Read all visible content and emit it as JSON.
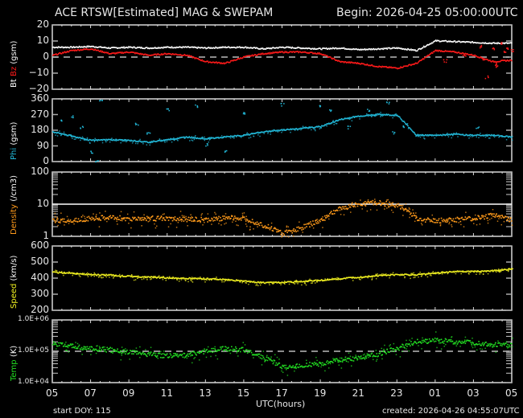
{
  "header": {
    "title": "ACE RTSW[Estimated] MAG & SWEPAM",
    "begin": "Begin: 2026-04-25 05:00:00UTC"
  },
  "footer": {
    "start_doy": "start DOY: 115",
    "created": "created: 2026-04-26 04:55:07UTC",
    "xaxis_label": "UTC(hours)"
  },
  "colors": {
    "background": "#000000",
    "axis": "#d8d8d8",
    "bt": "#ffffff",
    "bz": "#ff1a1a",
    "phi": "#22b8d8",
    "density": "#ff9a1a",
    "speed": "#f0f020",
    "temp": "#22dd22"
  },
  "chart_data": [
    {
      "type": "line",
      "panel": "mag-bt-bz",
      "ylabel_parts": [
        {
          "text": "Bt",
          "color": "#ffffff"
        },
        {
          "text": " Bz",
          "color": "#ff1a1a"
        },
        {
          "text": " (gsm)",
          "color": "#ffffff"
        }
      ],
      "ylim": [
        -20,
        20
      ],
      "yticks": [
        "20",
        "10",
        "0",
        "−10",
        "−20"
      ],
      "yticks_values": [
        20,
        10,
        0,
        -10,
        -20
      ],
      "reference_line": {
        "y": 0,
        "style": "dashed"
      },
      "x_hours": [
        0,
        1,
        2,
        3,
        4,
        5,
        6,
        7,
        8,
        9,
        10,
        11,
        12,
        13,
        14,
        15,
        16,
        17,
        18,
        19,
        20,
        21,
        22,
        23,
        24
      ],
      "series": [
        {
          "name": "Bt",
          "color": "#ffffff",
          "values": [
            6,
            6,
            6.5,
            5.5,
            6,
            5.5,
            6,
            6,
            5.5,
            6,
            6,
            5,
            6,
            5.5,
            5,
            5.5,
            4.5,
            5,
            5.5,
            4,
            10,
            9.5,
            9,
            8.5,
            8.5
          ]
        },
        {
          "name": "Bz",
          "color": "#ff1a1a",
          "values": [
            1,
            4,
            5,
            2,
            3,
            1,
            2,
            1,
            -3,
            -4,
            0,
            2,
            3,
            3,
            2,
            -3,
            -4,
            -6,
            -7,
            -4,
            4,
            3,
            1,
            -3,
            -2
          ]
        },
        {
          "name": "Bz_tail",
          "color": "#ff1a1a",
          "values": []
        }
      ],
      "extra_bz_points_hours": [
        [
          20.5,
          -2
        ],
        [
          21.5,
          2
        ],
        [
          22.5,
          -1
        ],
        [
          23.2,
          -5
        ],
        [
          23.6,
          3
        ],
        [
          24.5,
          7
        ],
        [
          25,
          -12
        ],
        [
          25.6,
          6
        ],
        [
          26,
          -4
        ],
        [
          26.5,
          9
        ],
        [
          27,
          6
        ],
        [
          27.5,
          4
        ]
      ]
    },
    {
      "type": "scatter",
      "panel": "phi",
      "ylabel_parts": [
        {
          "text": "Phi",
          "color": "#22b8d8"
        },
        {
          "text": " (gsm)",
          "color": "#ffffff"
        }
      ],
      "ylim": [
        0,
        360
      ],
      "yticks": [
        "360",
        "270",
        "180",
        "90",
        "0"
      ],
      "yticks_values": [
        360,
        270,
        180,
        90,
        0
      ],
      "x_hours": [
        0,
        1,
        2,
        3,
        4,
        5,
        6,
        7,
        8,
        9,
        10,
        11,
        12,
        13,
        14,
        15,
        16,
        17,
        18,
        19,
        20,
        21,
        22,
        23,
        24
      ],
      "values": [
        170,
        145,
        120,
        125,
        120,
        110,
        125,
        140,
        130,
        140,
        150,
        170,
        180,
        190,
        200,
        240,
        260,
        270,
        265,
        150,
        150,
        155,
        150,
        150,
        140
      ],
      "scatter_outliers_hours": [
        [
          0.5,
          240
        ],
        [
          1,
          260
        ],
        [
          1.5,
          200
        ],
        [
          2,
          60
        ],
        [
          2.3,
          10
        ],
        [
          2.5,
          350
        ],
        [
          4.4,
          220
        ],
        [
          5,
          170
        ],
        [
          6,
          300
        ],
        [
          7.5,
          320
        ],
        [
          8,
          100
        ],
        [
          9,
          60
        ],
        [
          10,
          280
        ],
        [
          12,
          330
        ],
        [
          14,
          320
        ],
        [
          14.5,
          300
        ],
        [
          15.5,
          200
        ],
        [
          16.5,
          300
        ],
        [
          17.5,
          340
        ],
        [
          17.8,
          170
        ],
        [
          18.3,
          200
        ],
        [
          22.2,
          200
        ]
      ]
    },
    {
      "type": "scatter",
      "panel": "density",
      "ylabel_parts": [
        {
          "text": "Density",
          "color": "#ff9a1a"
        },
        {
          "text": " (/cm3)",
          "color": "#ffffff"
        }
      ],
      "yscale": "log",
      "ylim": [
        1,
        100
      ],
      "yticks": [
        "100",
        "10",
        "1"
      ],
      "yticks_values": [
        100,
        10,
        1
      ],
      "reference_line": {
        "y": 10,
        "style": "solid"
      },
      "x_hours": [
        0,
        1,
        2,
        3,
        4,
        5,
        6,
        7,
        8,
        9,
        10,
        11,
        12,
        13,
        14,
        15,
        16,
        17,
        18,
        19,
        20,
        21,
        22,
        23,
        24
      ],
      "values": [
        3,
        3.2,
        3.5,
        3.8,
        3.5,
        3.6,
        3.4,
        3.3,
        3.2,
        3.7,
        3.5,
        2.2,
        1.2,
        1.8,
        3,
        7,
        10,
        11,
        9,
        3.5,
        3,
        3.2,
        3.5,
        4.5,
        3
      ]
    },
    {
      "type": "scatter",
      "panel": "speed",
      "ylabel_parts": [
        {
          "text": "Speed",
          "color": "#f0f020"
        },
        {
          "text": " (km/s)",
          "color": "#ffffff"
        }
      ],
      "ylim": [
        200,
        600
      ],
      "yticks": [
        "600",
        "500",
        "400",
        "300",
        "200"
      ],
      "yticks_values": [
        600,
        500,
        400,
        300,
        200
      ],
      "x_hours": [
        0,
        1,
        2,
        3,
        4,
        5,
        6,
        7,
        8,
        9,
        10,
        11,
        12,
        13,
        14,
        15,
        16,
        17,
        18,
        19,
        20,
        21,
        22,
        23,
        24
      ],
      "values": [
        435,
        430,
        420,
        418,
        410,
        405,
        400,
        398,
        395,
        390,
        380,
        370,
        372,
        378,
        385,
        395,
        405,
        415,
        420,
        420,
        430,
        440,
        440,
        445,
        455
      ]
    },
    {
      "type": "scatter",
      "panel": "temperature",
      "ylabel_parts": [
        {
          "text": "Temp",
          "color": "#22dd22"
        },
        {
          "text": " (K)",
          "color": "#ffffff"
        }
      ],
      "yscale": "log",
      "ylim": [
        10000,
        1000000
      ],
      "yticks": [
        "1.0E+06",
        "1.0E+05",
        "1.0E+04"
      ],
      "yticks_values": [
        1000000,
        100000,
        10000
      ],
      "reference_line": {
        "y": 100000,
        "style": "dashed"
      },
      "x_hours": [
        0,
        1,
        2,
        3,
        4,
        5,
        6,
        7,
        8,
        9,
        10,
        11,
        12,
        13,
        14,
        15,
        16,
        17,
        18,
        19,
        20,
        21,
        22,
        23,
        24
      ],
      "values": [
        180000,
        140000,
        120000,
        110000,
        90000,
        80000,
        70000,
        75000,
        100000,
        120000,
        110000,
        60000,
        30000,
        35000,
        40000,
        50000,
        60000,
        80000,
        120000,
        200000,
        220000,
        200000,
        180000,
        160000,
        150000
      ]
    }
  ],
  "xaxis": {
    "ticks": [
      "05",
      "07",
      "09",
      "11",
      "13",
      "15",
      "17",
      "19",
      "21",
      "23",
      "01",
      "03",
      "05"
    ],
    "range_hours": [
      0,
      24
    ]
  }
}
